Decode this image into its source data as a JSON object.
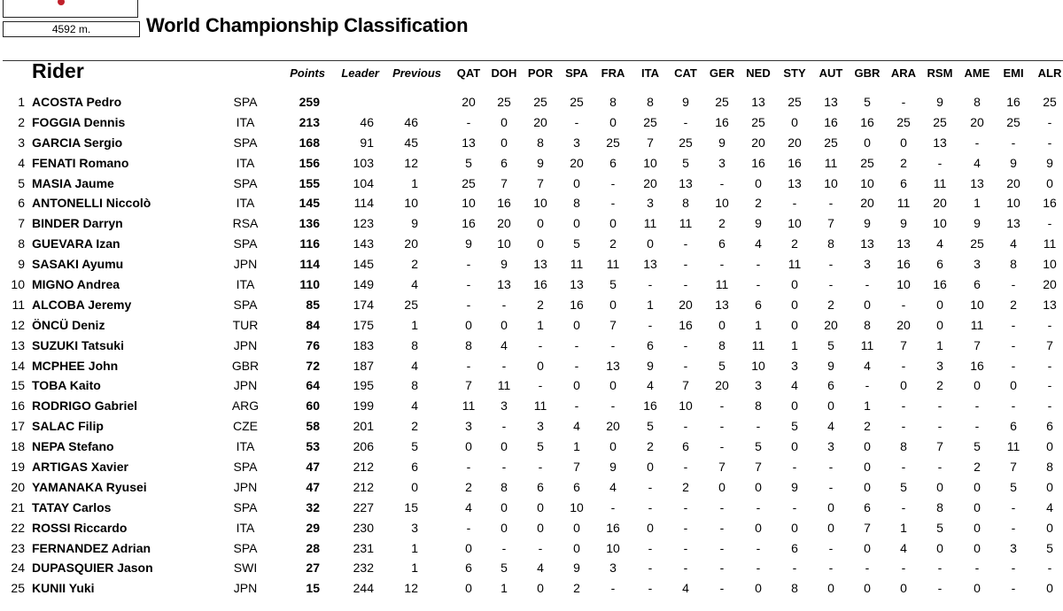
{
  "header": {
    "distance": "4592 m.",
    "title": "World Championship Classification"
  },
  "columns": {
    "rider": "Rider",
    "points": "Points",
    "leader": "Leader",
    "previous": "Previous",
    "races": [
      "QAT",
      "DOH",
      "POR",
      "SPA",
      "FRA",
      "ITA",
      "CAT",
      "GER",
      "NED",
      "STY",
      "AUT",
      "GBR",
      "ARA",
      "RSM",
      "AME",
      "EMI",
      "ALR"
    ]
  },
  "rows": [
    {
      "pos": "1",
      "name": "ACOSTA Pedro",
      "nat": "SPA",
      "pts": "259",
      "leader": "",
      "prev": "",
      "r": [
        "20",
        "25",
        "25",
        "25",
        "8",
        "8",
        "9",
        "25",
        "13",
        "25",
        "13",
        "5",
        "-",
        "9",
        "8",
        "16",
        "25"
      ]
    },
    {
      "pos": "2",
      "name": "FOGGIA Dennis",
      "nat": "ITA",
      "pts": "213",
      "leader": "46",
      "prev": "46",
      "r": [
        "-",
        "0",
        "20",
        "-",
        "0",
        "25",
        "-",
        "16",
        "25",
        "0",
        "16",
        "16",
        "25",
        "25",
        "20",
        "25",
        "-"
      ]
    },
    {
      "pos": "3",
      "name": "GARCIA Sergio",
      "nat": "SPA",
      "pts": "168",
      "leader": "91",
      "prev": "45",
      "r": [
        "13",
        "0",
        "8",
        "3",
        "25",
        "7",
        "25",
        "9",
        "20",
        "20",
        "25",
        "0",
        "0",
        "13",
        "-",
        "-",
        "-"
      ]
    },
    {
      "pos": "4",
      "name": "FENATI Romano",
      "nat": "ITA",
      "pts": "156",
      "leader": "103",
      "prev": "12",
      "r": [
        "5",
        "6",
        "9",
        "20",
        "6",
        "10",
        "5",
        "3",
        "16",
        "16",
        "11",
        "25",
        "2",
        "-",
        "4",
        "9",
        "9"
      ]
    },
    {
      "pos": "5",
      "name": "MASIA Jaume",
      "nat": "SPA",
      "pts": "155",
      "leader": "104",
      "prev": "1",
      "r": [
        "25",
        "7",
        "7",
        "0",
        "-",
        "20",
        "13",
        "-",
        "0",
        "13",
        "10",
        "10",
        "6",
        "11",
        "13",
        "20",
        "0"
      ]
    },
    {
      "pos": "6",
      "name": "ANTONELLI Niccolò",
      "nat": "ITA",
      "pts": "145",
      "leader": "114",
      "prev": "10",
      "r": [
        "10",
        "16",
        "10",
        "8",
        "-",
        "3",
        "8",
        "10",
        "2",
        "-",
        "-",
        "20",
        "11",
        "20",
        "1",
        "10",
        "16"
      ]
    },
    {
      "pos": "7",
      "name": "BINDER Darryn",
      "nat": "RSA",
      "pts": "136",
      "leader": "123",
      "prev": "9",
      "r": [
        "16",
        "20",
        "0",
        "0",
        "0",
        "11",
        "11",
        "2",
        "9",
        "10",
        "7",
        "9",
        "9",
        "10",
        "9",
        "13",
        "-"
      ]
    },
    {
      "pos": "8",
      "name": "GUEVARA Izan",
      "nat": "SPA",
      "pts": "116",
      "leader": "143",
      "prev": "20",
      "r": [
        "9",
        "10",
        "0",
        "5",
        "2",
        "0",
        "-",
        "6",
        "4",
        "2",
        "8",
        "13",
        "13",
        "4",
        "25",
        "4",
        "11"
      ]
    },
    {
      "pos": "9",
      "name": "SASAKI Ayumu",
      "nat": "JPN",
      "pts": "114",
      "leader": "145",
      "prev": "2",
      "r": [
        "-",
        "9",
        "13",
        "11",
        "11",
        "13",
        "-",
        "-",
        "-",
        "11",
        "-",
        "3",
        "16",
        "6",
        "3",
        "8",
        "10"
      ]
    },
    {
      "pos": "10",
      "name": "MIGNO Andrea",
      "nat": "ITA",
      "pts": "110",
      "leader": "149",
      "prev": "4",
      "r": [
        "-",
        "13",
        "16",
        "13",
        "5",
        "-",
        "-",
        "11",
        "-",
        "0",
        "-",
        "-",
        "10",
        "16",
        "6",
        "-",
        "20"
      ]
    },
    {
      "pos": "11",
      "name": "ALCOBA Jeremy",
      "nat": "SPA",
      "pts": "85",
      "leader": "174",
      "prev": "25",
      "r": [
        "-",
        "-",
        "2",
        "16",
        "0",
        "1",
        "20",
        "13",
        "6",
        "0",
        "2",
        "0",
        "-",
        "0",
        "10",
        "2",
        "13"
      ]
    },
    {
      "pos": "12",
      "name": "ÖNCÜ Deniz",
      "nat": "TUR",
      "pts": "84",
      "leader": "175",
      "prev": "1",
      "r": [
        "0",
        "0",
        "1",
        "0",
        "7",
        "-",
        "16",
        "0",
        "1",
        "0",
        "20",
        "8",
        "20",
        "0",
        "11",
        "-",
        "-"
      ]
    },
    {
      "pos": "13",
      "name": "SUZUKI Tatsuki",
      "nat": "JPN",
      "pts": "76",
      "leader": "183",
      "prev": "8",
      "r": [
        "8",
        "4",
        "-",
        "-",
        "-",
        "6",
        "-",
        "8",
        "11",
        "1",
        "5",
        "11",
        "7",
        "1",
        "7",
        "-",
        "7"
      ]
    },
    {
      "pos": "14",
      "name": "MCPHEE John",
      "nat": "GBR",
      "pts": "72",
      "leader": "187",
      "prev": "4",
      "r": [
        "-",
        "-",
        "0",
        "-",
        "13",
        "9",
        "-",
        "5",
        "10",
        "3",
        "9",
        "4",
        "-",
        "3",
        "16",
        "-",
        "-"
      ]
    },
    {
      "pos": "15",
      "name": "TOBA Kaito",
      "nat": "JPN",
      "pts": "64",
      "leader": "195",
      "prev": "8",
      "r": [
        "7",
        "11",
        "-",
        "0",
        "0",
        "4",
        "7",
        "20",
        "3",
        "4",
        "6",
        "-",
        "0",
        "2",
        "0",
        "0",
        "-"
      ]
    },
    {
      "pos": "16",
      "name": "RODRIGO Gabriel",
      "nat": "ARG",
      "pts": "60",
      "leader": "199",
      "prev": "4",
      "r": [
        "11",
        "3",
        "11",
        "-",
        "-",
        "16",
        "10",
        "-",
        "8",
        "0",
        "0",
        "1",
        "-",
        "-",
        "-",
        "-",
        "-"
      ]
    },
    {
      "pos": "17",
      "name": "SALAC Filip",
      "nat": "CZE",
      "pts": "58",
      "leader": "201",
      "prev": "2",
      "r": [
        "3",
        "-",
        "3",
        "4",
        "20",
        "5",
        "-",
        "-",
        "-",
        "5",
        "4",
        "2",
        "-",
        "-",
        "-",
        "6",
        "6"
      ]
    },
    {
      "pos": "18",
      "name": "NEPA Stefano",
      "nat": "ITA",
      "pts": "53",
      "leader": "206",
      "prev": "5",
      "r": [
        "0",
        "0",
        "5",
        "1",
        "0",
        "2",
        "6",
        "-",
        "5",
        "0",
        "3",
        "0",
        "8",
        "7",
        "5",
        "11",
        "0"
      ]
    },
    {
      "pos": "19",
      "name": "ARTIGAS Xavier",
      "nat": "SPA",
      "pts": "47",
      "leader": "212",
      "prev": "6",
      "r": [
        "-",
        "-",
        "-",
        "7",
        "9",
        "0",
        "-",
        "7",
        "7",
        "-",
        "-",
        "0",
        "-",
        "-",
        "2",
        "7",
        "8"
      ]
    },
    {
      "pos": "20",
      "name": "YAMANAKA Ryusei",
      "nat": "JPN",
      "pts": "47",
      "leader": "212",
      "prev": "0",
      "r": [
        "2",
        "8",
        "6",
        "6",
        "4",
        "-",
        "2",
        "0",
        "0",
        "9",
        "-",
        "0",
        "5",
        "0",
        "0",
        "5",
        "0"
      ]
    },
    {
      "pos": "21",
      "name": "TATAY Carlos",
      "nat": "SPA",
      "pts": "32",
      "leader": "227",
      "prev": "15",
      "r": [
        "4",
        "0",
        "0",
        "10",
        "-",
        "-",
        "-",
        "-",
        "-",
        "-",
        "0",
        "6",
        "-",
        "8",
        "0",
        "-",
        "4"
      ]
    },
    {
      "pos": "22",
      "name": "ROSSI Riccardo",
      "nat": "ITA",
      "pts": "29",
      "leader": "230",
      "prev": "3",
      "r": [
        "-",
        "0",
        "0",
        "0",
        "16",
        "0",
        "-",
        "-",
        "0",
        "0",
        "0",
        "7",
        "1",
        "5",
        "0",
        "-",
        "0"
      ]
    },
    {
      "pos": "23",
      "name": "FERNANDEZ Adrian",
      "nat": "SPA",
      "pts": "28",
      "leader": "231",
      "prev": "1",
      "r": [
        "0",
        "-",
        "-",
        "0",
        "10",
        "-",
        "-",
        "-",
        "-",
        "6",
        "-",
        "0",
        "4",
        "0",
        "0",
        "3",
        "5"
      ]
    },
    {
      "pos": "24",
      "name": "DUPASQUIER Jason",
      "nat": "SWI",
      "pts": "27",
      "leader": "232",
      "prev": "1",
      "r": [
        "6",
        "5",
        "4",
        "9",
        "3",
        "-",
        "-",
        "-",
        "-",
        "-",
        "-",
        "-",
        "-",
        "-",
        "-",
        "-",
        "-"
      ]
    },
    {
      "pos": "25",
      "name": "KUNII Yuki",
      "nat": "JPN",
      "pts": "15",
      "leader": "244",
      "prev": "12",
      "r": [
        "0",
        "1",
        "0",
        "2",
        "-",
        "-",
        "4",
        "-",
        "0",
        "8",
        "0",
        "0",
        "0",
        "-",
        "0",
        "-",
        "0"
      ]
    }
  ]
}
